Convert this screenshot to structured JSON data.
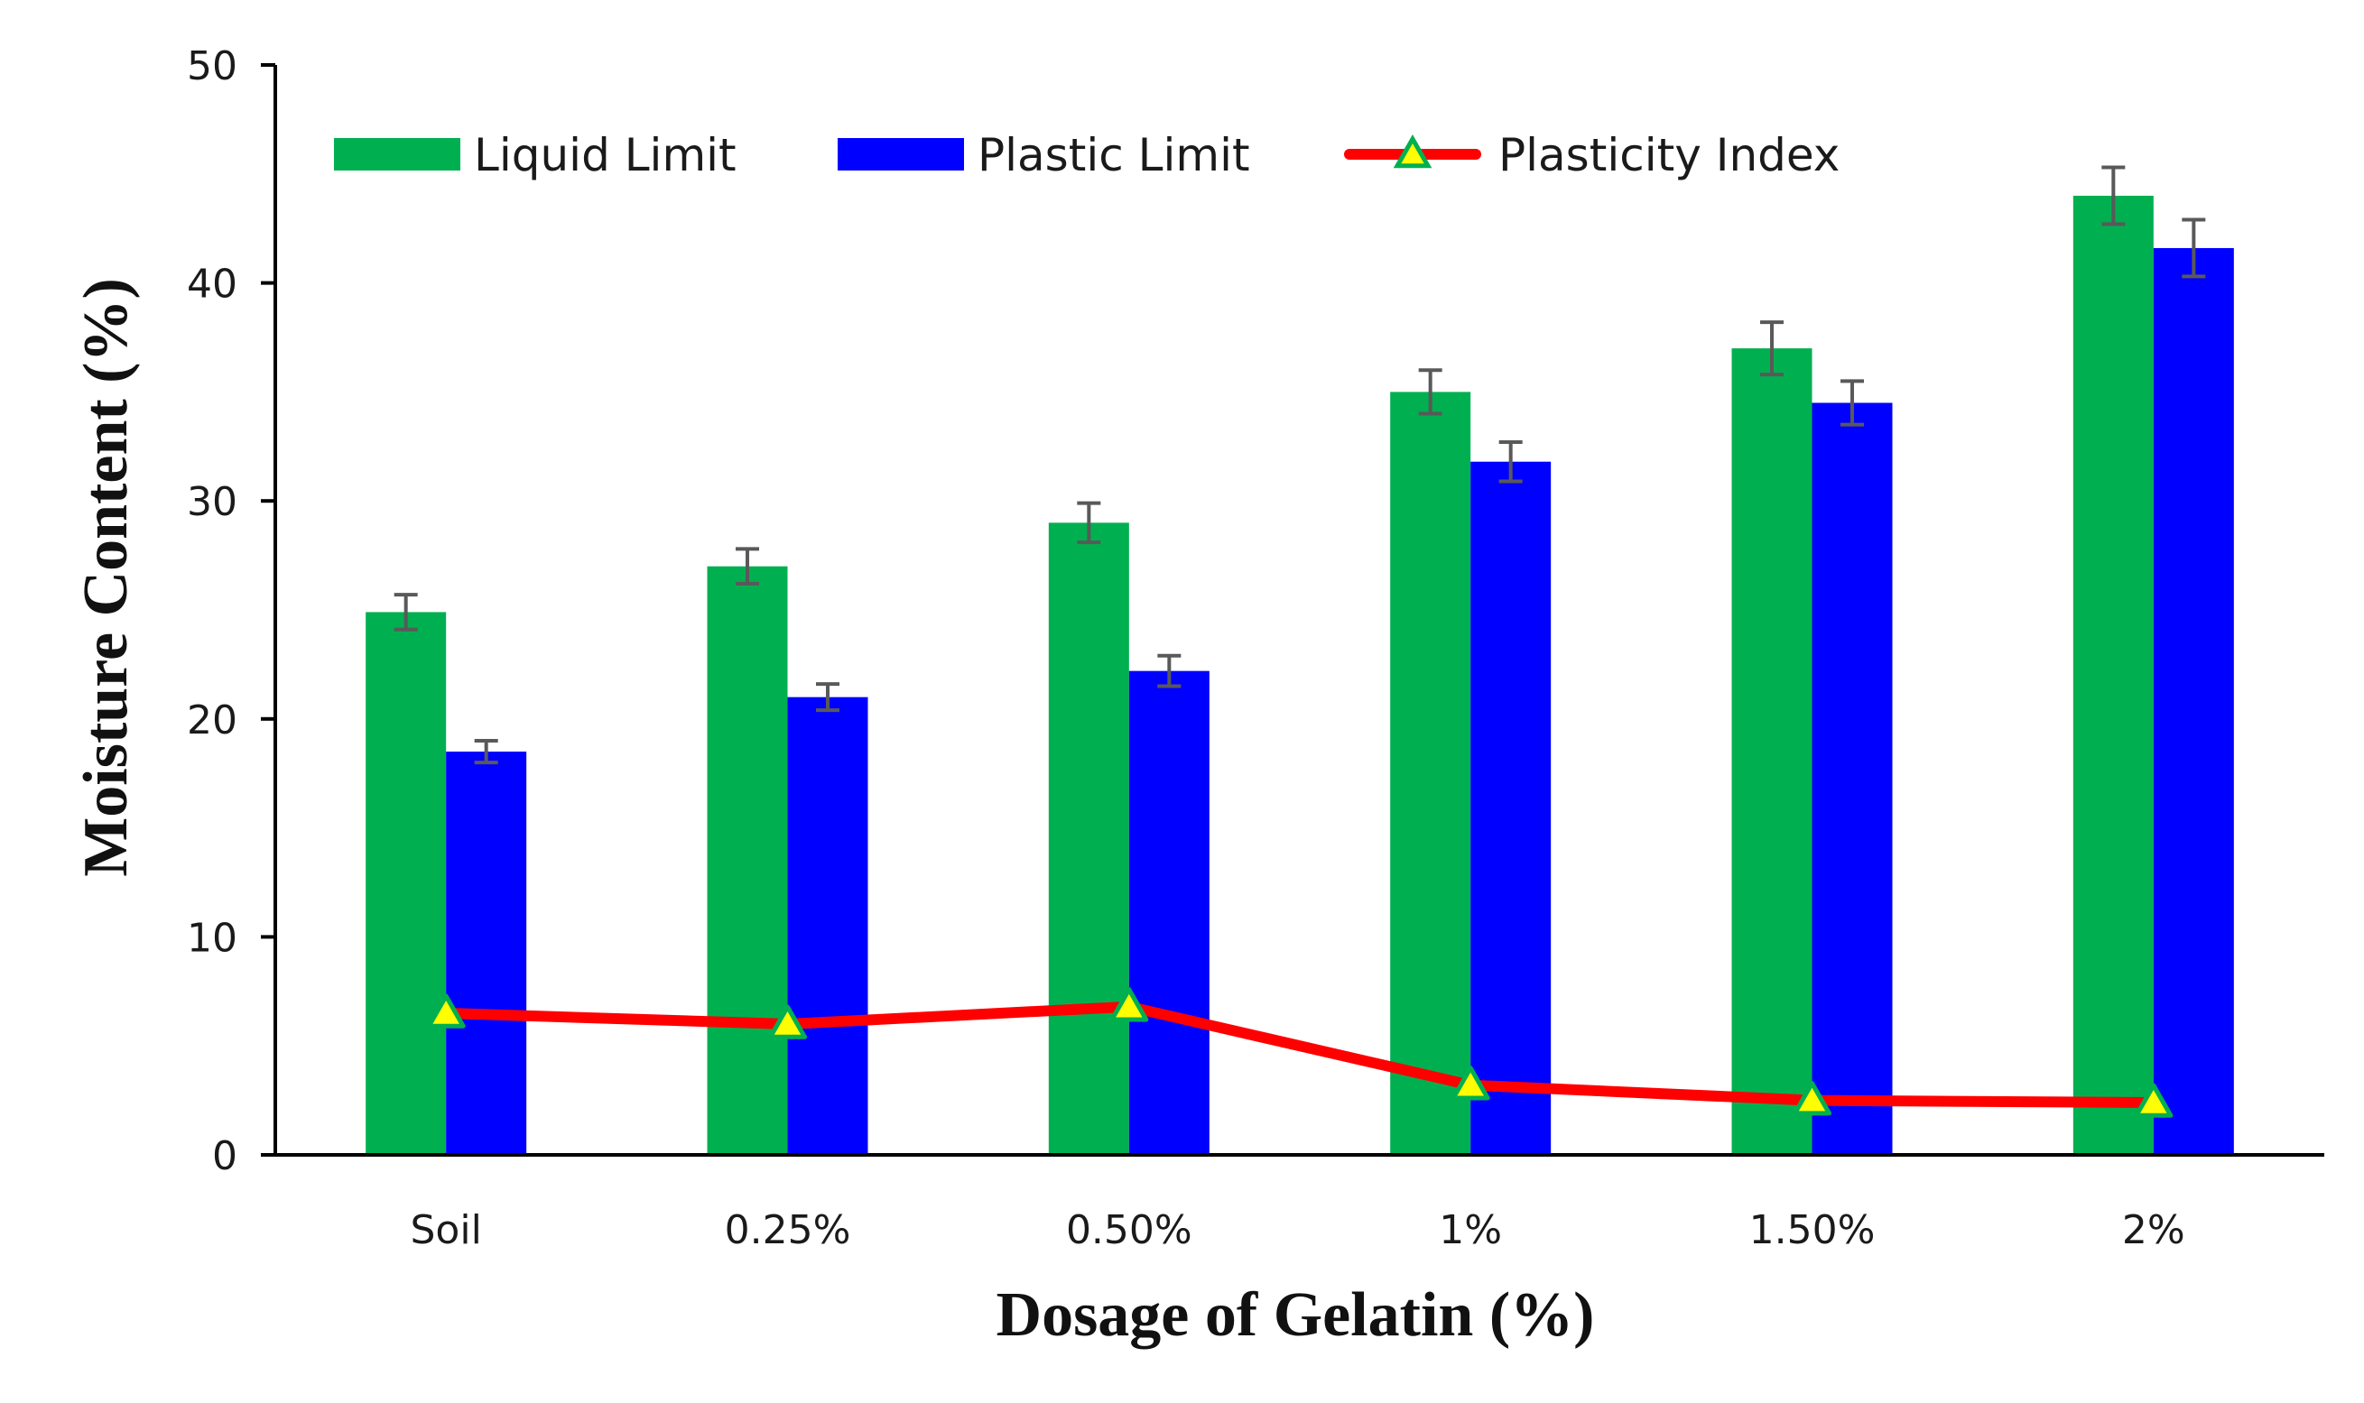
{
  "chart_data": {
    "type": "bar",
    "title": "",
    "xlabel": "Dosage of Gelatin (%)",
    "ylabel": "Moisture Content (%)",
    "ylim": [
      0,
      50
    ],
    "yticks": [
      "0",
      "10",
      "20",
      "30",
      "40",
      "50"
    ],
    "categories": [
      "Soil",
      "0.25%",
      "0.50%",
      "1%",
      "1.50%",
      "2%"
    ],
    "grid": false,
    "legend_position": "top",
    "series": [
      {
        "name": "Liquid Limit",
        "kind": "bar",
        "color": "#00b050",
        "values": [
          24.9,
          27.0,
          29.0,
          35.0,
          37.0,
          44.0
        ],
        "error": [
          0.8,
          0.8,
          0.9,
          1.0,
          1.2,
          1.3
        ]
      },
      {
        "name": "Plastic Limit",
        "kind": "bar",
        "color": "#0000ff",
        "values": [
          18.5,
          21.0,
          22.2,
          31.8,
          34.5,
          41.6
        ],
        "error": [
          0.5,
          0.6,
          0.7,
          0.9,
          1.0,
          1.3
        ]
      },
      {
        "name": "Plasticity Index",
        "kind": "line",
        "color": "#ff0000",
        "marker": "triangle",
        "marker_color": "#ffff00",
        "marker_edge": "#00b050",
        "values": [
          6.5,
          6.0,
          6.8,
          3.2,
          2.5,
          2.4
        ]
      }
    ],
    "error_bar_color": "#595959"
  }
}
